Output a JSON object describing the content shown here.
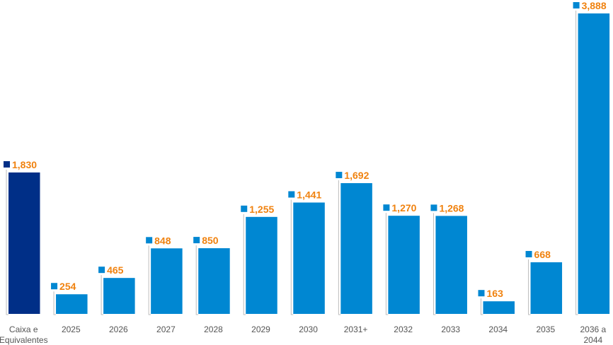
{
  "chart_data": {
    "type": "bar",
    "title": "",
    "xlabel": "",
    "ylabel": "",
    "categories": [
      [
        "Caixa e",
        "Equivalentes"
      ],
      [
        "2025"
      ],
      [
        "2026"
      ],
      [
        "2027"
      ],
      [
        "2028"
      ],
      [
        "2029"
      ],
      [
        "2030"
      ],
      [
        "2031+"
      ],
      [
        "2032"
      ],
      [
        "2033"
      ],
      [
        "2034"
      ],
      [
        "2035"
      ],
      [
        "2036 a",
        "2044"
      ]
    ],
    "values": [
      1830,
      254,
      465,
      848,
      850,
      1255,
      1441,
      1692,
      1270,
      1268,
      163,
      668,
      3888
    ],
    "value_labels": [
      "1,830",
      "254",
      "465",
      "848",
      "850",
      "1,255",
      "1,441",
      "1,692",
      "1,270",
      "1,268",
      "163",
      "668",
      "3,888"
    ],
    "ylim": [
      0,
      3888
    ],
    "grid": false,
    "legend": false,
    "colors": {
      "first_bar": "#002f87",
      "bars": "#0087d2",
      "value_text": "#f0820f",
      "category_text": "#555555",
      "bracket_line": "#bdbdbd"
    }
  }
}
